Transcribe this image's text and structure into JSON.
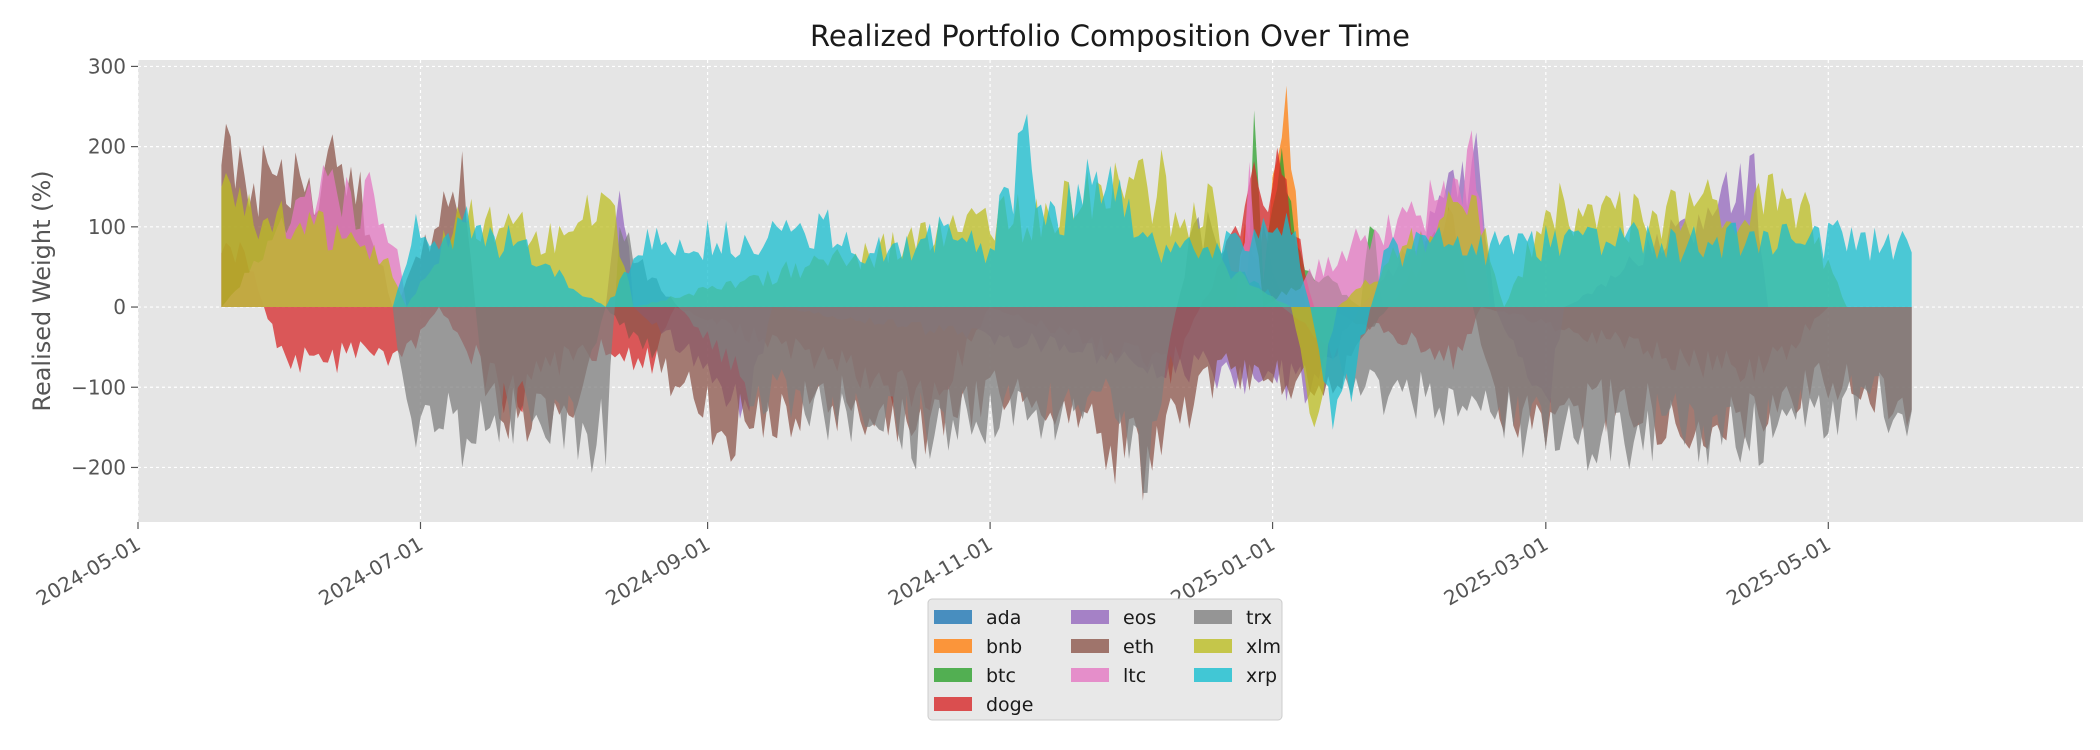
{
  "chart_data": {
    "type": "area",
    "title": "Realized Portfolio Composition Over Time",
    "xlabel": "",
    "ylabel": "Realised Weight (%)",
    "xlim": [
      "2024-05-01",
      "2025-06-25"
    ],
    "ylim": [
      -268,
      308
    ],
    "y_ticks": [
      -200,
      -100,
      0,
      100,
      200,
      300
    ],
    "y_tick_labels": [
      "−200",
      "−100",
      "0",
      "100",
      "200",
      "300"
    ],
    "x_ticks": [
      "2024-05-01",
      "2024-07-01",
      "2024-09-01",
      "2024-11-01",
      "2025-01-01",
      "2025-03-01",
      "2025-05-01"
    ],
    "x_tick_labels": [
      "2024-05-01",
      "2024-07-01",
      "2024-09-01",
      "2024-11-01",
      "2025-01-01",
      "2025-03-01",
      "2025-05-01"
    ],
    "grid": true,
    "legend_position": "bottom-center",
    "x_start": "2024-05-19",
    "x_end": "2025-05-19",
    "series": [
      {
        "name": "ada",
        "color": "#1f77b4",
        "points": [
          [
            "2024-05-19",
            0
          ],
          [
            "2024-12-25",
            0
          ],
          [
            "2024-12-27",
            60
          ],
          [
            "2024-12-30",
            100
          ],
          [
            "2025-01-02",
            30
          ],
          [
            "2025-01-05",
            0
          ],
          [
            "2025-05-19",
            0
          ]
        ]
      },
      {
        "name": "bnb",
        "color": "#ff7f0e",
        "points": [
          [
            "2024-05-19",
            0
          ],
          [
            "2024-12-24",
            0
          ],
          [
            "2024-12-26",
            150
          ],
          [
            "2024-12-29",
            60
          ],
          [
            "2025-01-04",
            275
          ],
          [
            "2025-01-06",
            150
          ],
          [
            "2025-01-08",
            0
          ],
          [
            "2025-05-19",
            0
          ]
        ]
      },
      {
        "name": "btc",
        "color": "#2ca02c",
        "points": [
          [
            "2024-05-19",
            0
          ],
          [
            "2024-12-26",
            0
          ],
          [
            "2024-12-28",
            240
          ],
          [
            "2024-12-30",
            50
          ],
          [
            "2025-01-04",
            250
          ],
          [
            "2025-01-06",
            80
          ],
          [
            "2025-01-20",
            0
          ],
          [
            "2025-01-22",
            150
          ],
          [
            "2025-01-25",
            0
          ],
          [
            "2025-05-19",
            0
          ]
        ]
      },
      {
        "name": "doge",
        "color": "#d62728",
        "points": [
          [
            "2024-05-19",
            100
          ],
          [
            "2024-05-25",
            70
          ],
          [
            "2024-06-01",
            -80
          ],
          [
            "2024-06-10",
            -90
          ],
          [
            "2024-06-18",
            -60
          ],
          [
            "2024-06-25",
            -100
          ],
          [
            "2024-07-05",
            0
          ],
          [
            "2024-07-20",
            -150
          ],
          [
            "2024-08-05",
            -60
          ],
          [
            "2024-08-20",
            -90
          ],
          [
            "2024-08-25",
            0
          ],
          [
            "2024-10-20",
            -150
          ],
          [
            "2024-11-01",
            0
          ],
          [
            "2024-12-10",
            -100
          ],
          [
            "2024-12-28",
            180
          ],
          [
            "2025-01-03",
            220
          ],
          [
            "2025-01-10",
            0
          ],
          [
            "2025-02-10",
            -80
          ],
          [
            "2025-02-15",
            0
          ],
          [
            "2025-04-10",
            -100
          ],
          [
            "2025-04-20",
            -80
          ],
          [
            "2025-05-01",
            0
          ],
          [
            "2025-05-19",
            0
          ]
        ]
      },
      {
        "name": "eos",
        "color": "#9467bd",
        "points": [
          [
            "2024-05-19",
            0
          ],
          [
            "2024-08-10",
            0
          ],
          [
            "2024-08-13",
            225
          ],
          [
            "2024-08-16",
            0
          ],
          [
            "2024-09-10",
            -150
          ],
          [
            "2024-09-15",
            0
          ],
          [
            "2025-01-10",
            -120
          ],
          [
            "2025-01-20",
            0
          ],
          [
            "2025-02-14",
            215
          ],
          [
            "2025-02-18",
            0
          ],
          [
            "2025-03-01",
            -160
          ],
          [
            "2025-03-05",
            0
          ],
          [
            "2025-04-15",
            190
          ],
          [
            "2025-04-18",
            0
          ],
          [
            "2025-05-19",
            0
          ]
        ]
      },
      {
        "name": "eth",
        "color": "#8c564b",
        "points": [
          [
            "2024-05-19",
            240
          ],
          [
            "2024-05-25",
            180
          ],
          [
            "2024-06-01",
            210
          ],
          [
            "2024-06-08",
            150
          ],
          [
            "2024-06-12",
            230
          ],
          [
            "2024-06-20",
            140
          ],
          [
            "2024-06-25",
            0
          ],
          [
            "2024-07-10",
            190
          ],
          [
            "2024-07-15",
            -150
          ],
          [
            "2024-08-01",
            -200
          ],
          [
            "2024-08-10",
            0
          ],
          [
            "2024-09-05",
            -200
          ],
          [
            "2024-10-01",
            -150
          ],
          [
            "2024-10-15",
            -190
          ],
          [
            "2024-11-05",
            -120
          ],
          [
            "2024-12-05",
            -240
          ],
          [
            "2024-12-20",
            -100
          ],
          [
            "2025-01-15",
            -120
          ],
          [
            "2025-02-08",
            140
          ],
          [
            "2025-02-20",
            -180
          ],
          [
            "2025-03-15",
            -150
          ],
          [
            "2025-04-05",
            -190
          ],
          [
            "2025-05-01",
            -110
          ],
          [
            "2025-05-19",
            -160
          ]
        ]
      },
      {
        "name": "ltc",
        "color": "#e377c2",
        "points": [
          [
            "2024-05-19",
            0
          ],
          [
            "2024-06-02",
            120
          ],
          [
            "2024-06-10",
            180
          ],
          [
            "2024-06-16",
            160
          ],
          [
            "2024-06-22",
            170
          ],
          [
            "2024-06-26",
            120
          ],
          [
            "2024-06-28",
            0
          ],
          [
            "2024-12-24",
            0
          ],
          [
            "2024-12-27",
            200
          ],
          [
            "2024-12-30",
            0
          ],
          [
            "2025-02-14",
            220
          ],
          [
            "2025-02-17",
            0
          ],
          [
            "2025-05-19",
            0
          ]
        ]
      },
      {
        "name": "trx",
        "color": "#7f7f7f",
        "points": [
          [
            "2024-05-19",
            0
          ],
          [
            "2024-06-25",
            0
          ],
          [
            "2024-06-28",
            -190
          ],
          [
            "2024-07-03",
            -160
          ],
          [
            "2024-07-10",
            -200
          ],
          [
            "2024-07-25",
            -150
          ],
          [
            "2024-08-10",
            -210
          ],
          [
            "2024-08-13",
            110
          ],
          [
            "2024-08-18",
            60
          ],
          [
            "2024-09-10",
            -120
          ],
          [
            "2024-10-10",
            -200
          ],
          [
            "2024-11-25",
            -150
          ],
          [
            "2024-12-05",
            -240
          ],
          [
            "2024-12-15",
            140
          ],
          [
            "2024-12-20",
            100
          ],
          [
            "2025-01-20",
            -120
          ],
          [
            "2025-03-01",
            -200
          ],
          [
            "2025-04-20",
            -190
          ],
          [
            "2025-05-05",
            -150
          ],
          [
            "2025-05-19",
            -160
          ]
        ]
      },
      {
        "name": "xlm",
        "color": "#bcbd22",
        "points": [
          [
            "2024-05-19",
            180
          ],
          [
            "2024-05-25",
            140
          ],
          [
            "2024-06-05",
            120
          ],
          [
            "2024-06-15",
            110
          ],
          [
            "2024-06-25",
            60
          ],
          [
            "2024-06-28",
            0
          ],
          [
            "2024-07-10",
            140
          ],
          [
            "2024-07-20",
            120
          ],
          [
            "2024-08-01",
            100
          ],
          [
            "2024-08-07",
            150
          ],
          [
            "2024-08-12",
            130
          ],
          [
            "2024-08-16",
            0
          ],
          [
            "2024-12-08",
            190
          ],
          [
            "2024-12-12",
            100
          ],
          [
            "2024-12-18",
            170
          ],
          [
            "2024-12-22",
            60
          ],
          [
            "2025-01-05",
            0
          ],
          [
            "2025-01-10",
            -180
          ],
          [
            "2025-01-15",
            0
          ],
          [
            "2025-02-13",
            180
          ],
          [
            "2025-02-20",
            0
          ],
          [
            "2025-03-01",
            150
          ],
          [
            "2025-03-20",
            140
          ],
          [
            "2025-04-01",
            150
          ],
          [
            "2025-04-12",
            160
          ],
          [
            "2025-04-25",
            160
          ],
          [
            "2025-05-05",
            0
          ],
          [
            "2025-05-19",
            0
          ]
        ]
      },
      {
        "name": "xrp",
        "color": "#17becf",
        "points": [
          [
            "2024-05-19",
            0
          ],
          [
            "2024-06-25",
            0
          ],
          [
            "2024-06-30",
            120
          ],
          [
            "2024-07-05",
            100
          ],
          [
            "2024-07-10",
            125
          ],
          [
            "2024-07-20",
            100
          ],
          [
            "2024-08-10",
            0
          ],
          [
            "2024-08-20",
            110
          ],
          [
            "2024-09-10",
            100
          ],
          [
            "2024-09-25",
            130
          ],
          [
            "2024-10-05",
            90
          ],
          [
            "2024-10-20",
            110
          ],
          [
            "2024-11-01",
            90
          ],
          [
            "2024-11-08",
            250
          ],
          [
            "2024-11-15",
            130
          ],
          [
            "2024-11-25",
            210
          ],
          [
            "2024-12-05",
            100
          ],
          [
            "2024-12-15",
            90
          ],
          [
            "2024-12-28",
            100
          ],
          [
            "2025-01-05",
            140
          ],
          [
            "2025-01-15",
            -200
          ],
          [
            "2025-01-25",
            80
          ],
          [
            "2025-02-05",
            100
          ],
          [
            "2025-02-20",
            90
          ],
          [
            "2025-03-10",
            110
          ],
          [
            "2025-03-25",
            100
          ],
          [
            "2025-04-10",
            100
          ],
          [
            "2025-04-25",
            110
          ],
          [
            "2025-05-10",
            100
          ],
          [
            "2025-05-19",
            90
          ]
        ]
      }
    ]
  }
}
